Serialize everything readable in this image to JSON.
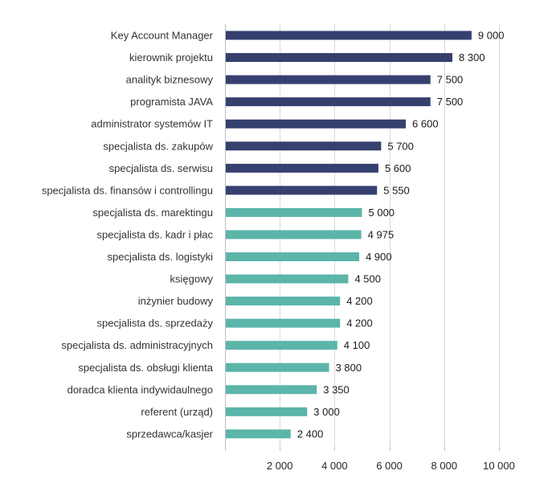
{
  "chart_data": {
    "type": "bar",
    "orientation": "horizontal",
    "title": "",
    "xlabel": "",
    "ylabel": "",
    "xlim": [
      0,
      10000
    ],
    "x_ticks": [
      0,
      2000,
      4000,
      6000,
      8000,
      10000
    ],
    "x_tick_labels": [
      "",
      "2 000",
      "4 000",
      "6 000",
      "8 000",
      "10 000"
    ],
    "grid": true,
    "legend": "none",
    "colors": {
      "top": "#36406F",
      "rest": "#5BB5A9",
      "grid": "#D9D9D9"
    },
    "categories": [
      "Key Account Manager",
      "kierownik projektu",
      "analityk biznesowy",
      "programista JAVA",
      "administrator systemów IT",
      "specjalista ds. zakupów",
      "specjalista ds. serwisu",
      "specjalista ds. finansów i controllingu",
      "specjalista ds. marektingu",
      "specjalista ds. kadr i płac",
      "specjalista ds. logistyki",
      "księgowy",
      "inżynier budowy",
      "specjalista ds. sprzedaży",
      "specjalista ds. administracyjnych",
      "specjalista ds. obsługi klienta",
      "doradca klienta indywidaulnego",
      "referent (urząd)",
      "sprzedawca/kasjer"
    ],
    "values": [
      9000,
      8300,
      7500,
      7500,
      6600,
      5700,
      5600,
      5550,
      5000,
      4975,
      4900,
      4500,
      4200,
      4200,
      4100,
      3800,
      3350,
      3000,
      2400
    ],
    "value_labels": [
      "9 000",
      "8 300",
      "7 500",
      "7 500",
      "6 600",
      "5 700",
      "5 600",
      "5 550",
      "5 000",
      "4 975",
      "4 900",
      "4 500",
      "4 200",
      "4 200",
      "4 100",
      "3 800",
      "3 350",
      "3 000",
      "2 400"
    ],
    "bar_group": [
      "top",
      "top",
      "top",
      "top",
      "top",
      "top",
      "top",
      "top",
      "rest",
      "rest",
      "rest",
      "rest",
      "rest",
      "rest",
      "rest",
      "rest",
      "rest",
      "rest",
      "rest"
    ]
  }
}
